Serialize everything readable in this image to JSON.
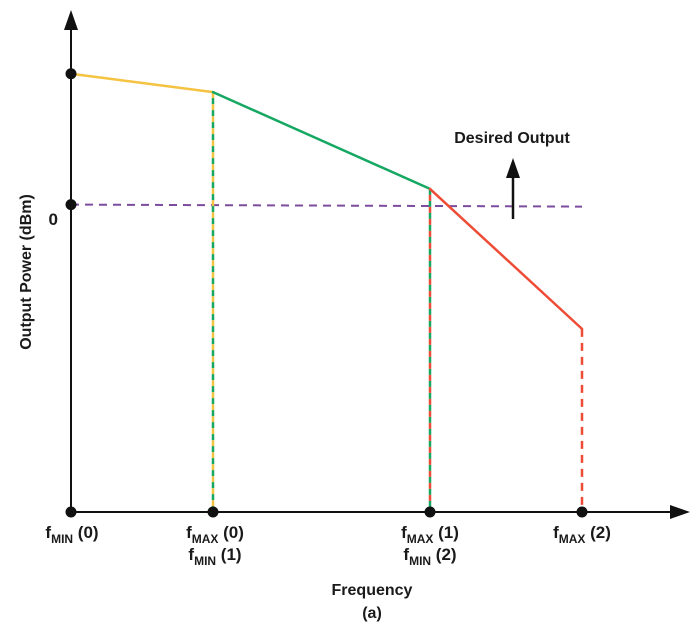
{
  "chart_data": {
    "type": "line",
    "xlabel": "Frequency",
    "ylabel": "Output Power (dBm)",
    "caption": "(a)",
    "grid": false,
    "x_ticks": [
      {
        "f": "f",
        "sub": "MIN",
        "arg": "(0)"
      },
      {
        "f": "f",
        "sub": "MAX",
        "arg": "(0)",
        "f2": "f",
        "sub2": "MIN",
        "arg2": "(1)"
      },
      {
        "f": "f",
        "sub": "MAX",
        "arg": "(1)",
        "f2": "f",
        "sub2": "MIN",
        "arg2": "(2)"
      },
      {
        "f": "f",
        "sub": "MAX",
        "arg": "(2)"
      }
    ],
    "y_ticks": [
      "0"
    ],
    "annotation": "Desired Output",
    "segments": [
      {
        "color": "#f5c342",
        "from": [
          0,
          1.0
        ],
        "to": [
          1,
          0.86
        ]
      },
      {
        "color": "#16a863",
        "from": [
          1,
          0.86
        ],
        "to": [
          2,
          0.12
        ]
      },
      {
        "color": "#ee4c36",
        "from": [
          2,
          0.12
        ],
        "to": [
          3,
          -0.95
        ]
      }
    ],
    "dashed_verticals": [
      {
        "x": 1,
        "colors": [
          "#f5c342",
          "#16a863"
        ]
      },
      {
        "x": 2,
        "colors": [
          "#16a863",
          "#ee4c36"
        ]
      },
      {
        "x": 3,
        "colors": [
          "#ee4c36"
        ]
      }
    ],
    "reference_line": {
      "y": 0,
      "color": "#7c4d9e",
      "style": "dashed"
    },
    "y_range": [
      -2.35,
      1.35
    ],
    "colors": {
      "axis": "#111111"
    }
  }
}
